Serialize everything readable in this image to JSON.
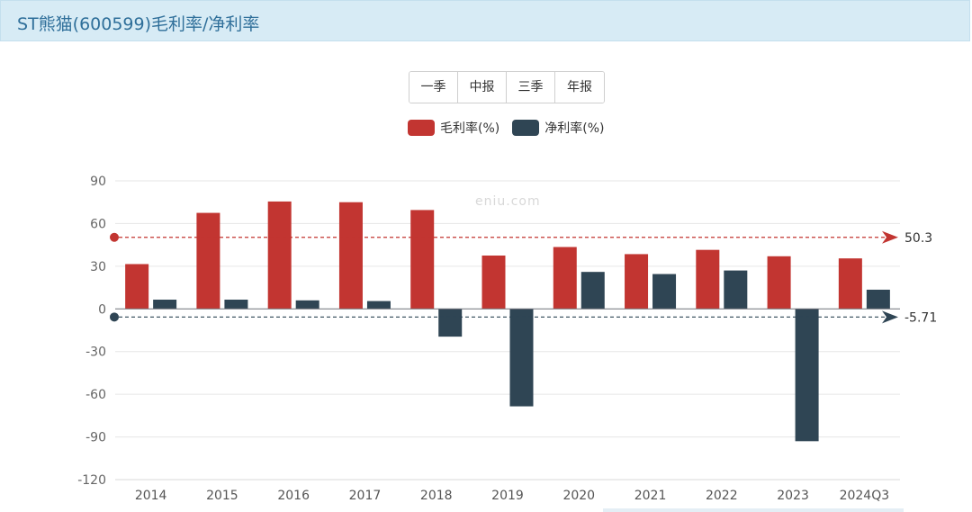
{
  "header": {
    "title": "ST熊猫(600599)毛利率/净利率"
  },
  "period_buttons": [
    "一季",
    "中报",
    "三季",
    "年报"
  ],
  "watermark": "eniu.com",
  "colors": {
    "gross": "#c23531",
    "net": "#2f4554",
    "header_bg": "#d7ebf5",
    "header_text": "#2f6f9a"
  },
  "chart_data": {
    "type": "bar",
    "categories": [
      "2014",
      "2015",
      "2016",
      "2017",
      "2018",
      "2019",
      "2020",
      "2021",
      "2022",
      "2023",
      "2024Q3"
    ],
    "series": [
      {
        "name": "毛利率(%)",
        "color": "#c23531",
        "values": [
          31.5,
          67.5,
          75.5,
          75,
          69.5,
          37.5,
          43.5,
          38.5,
          41.5,
          37,
          35.5
        ]
      },
      {
        "name": "净利率(%)",
        "color": "#2f4554",
        "values": [
          6.5,
          6.5,
          6,
          5.5,
          -19.5,
          -68.5,
          26,
          24.5,
          27,
          -93,
          13.5
        ]
      }
    ],
    "ylim": [
      -120,
      90
    ],
    "yticks": [
      90,
      60,
      30,
      0,
      -30,
      -60,
      -90,
      -120
    ],
    "average_lines": [
      {
        "series": "毛利率(%)",
        "value": 50.3,
        "label": "50.3"
      },
      {
        "series": "净利率(%)",
        "value": -5.71,
        "label": "-5.71"
      }
    ],
    "grid": true,
    "legend": "top-center"
  }
}
